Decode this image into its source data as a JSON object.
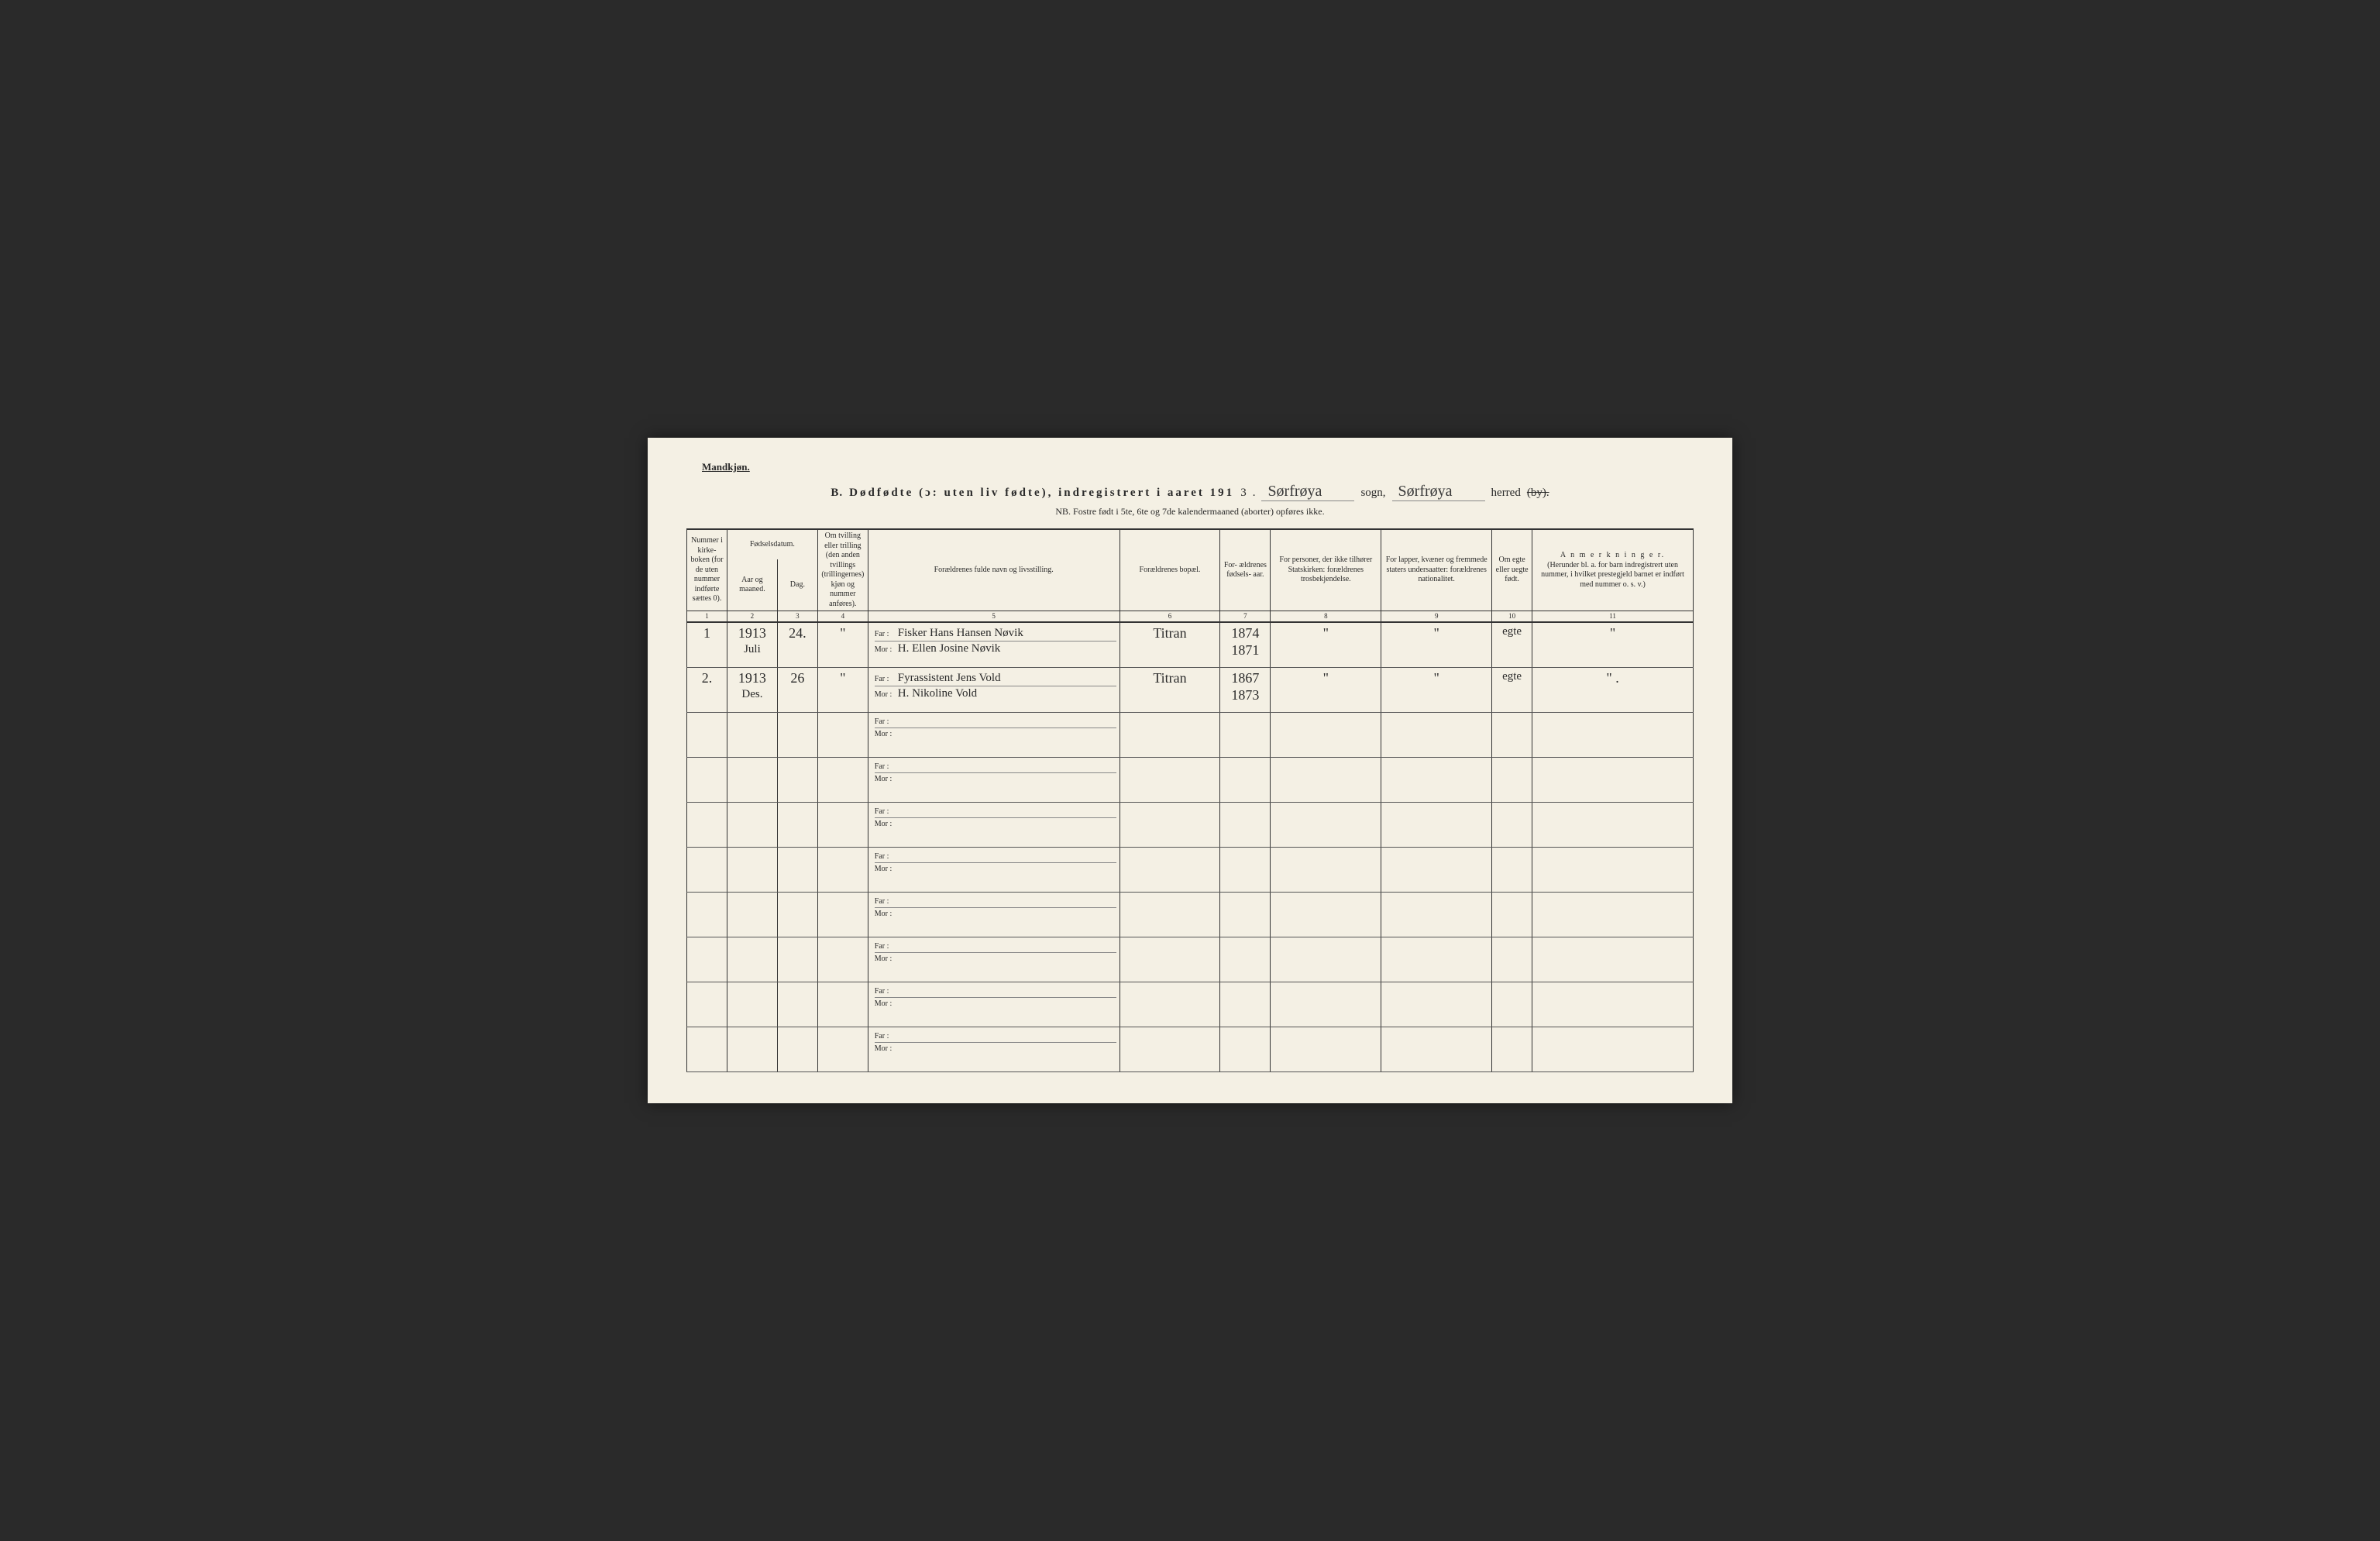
{
  "header": {
    "gender": "Mandkjøn.",
    "section_letter": "B.",
    "title_main": "Dødfødte (ɔ: uten liv fødte), indregistrert i aaret 191",
    "year_suffix": "3",
    "sogn_label": "sogn,",
    "sogn_value": "Sørfrøya",
    "herred_label": "herred",
    "herred_value": "Sørfrøya",
    "by_struck": "(by).",
    "nb": "NB.  Fostre født i 5te, 6te og 7de kalendermaaned (aborter) opføres ikke."
  },
  "columns": {
    "c1": "Nummer i kirke- boken (for de uten nummer indførte sættes 0).",
    "c2_top": "Fødselsdatum.",
    "c2a": "Aar og maaned.",
    "c2b": "Dag.",
    "c4": "Om tvilling eller trilling (den anden tvillings (trillingernes) kjøn og nummer anføres).",
    "c5": "Forældrenes fulde navn og livsstilling.",
    "c6": "Forældrenes bopæl.",
    "c7": "For- ældrenes fødsels- aar.",
    "c8": "For personer, der ikke tilhører Statskirken: forældrenes trosbekjendelse.",
    "c9": "For lapper, kvæner og fremmede staters undersaatter: forældrenes nationalitet.",
    "c10": "Om egte eller uegte født.",
    "c11_title": "A n m e r k n i n g e r.",
    "c11_sub": "(Herunder bl. a. for barn indregistrert uten nummer, i hvilket prestegjeld barnet er indført med nummer o. s. v.)",
    "nums": [
      "1",
      "2",
      "3",
      "4",
      "5",
      "6",
      "7",
      "8",
      "9",
      "10",
      "11"
    ]
  },
  "labels": {
    "far": "Far :",
    "mor": "Mor :"
  },
  "rows": [
    {
      "num": "1",
      "year_month": "1913 Juli",
      "day": "24.",
      "twin": "\"",
      "far": "Fisker Hans Hansen Nøvik",
      "mor": "H. Ellen Josine Nøvik",
      "home": "Titran",
      "pyears_top": "1874",
      "pyears_bot": "1871",
      "rel": "\"",
      "nat": "\"",
      "leg": "egte",
      "rem": "\""
    },
    {
      "num": "2.",
      "year_month": "1913 Des.",
      "day": "26",
      "twin": "\"",
      "far": "Fyrassistent Jens Vold",
      "mor": "H. Nikoline Vold",
      "home": "Titran",
      "pyears_top": "1867",
      "pyears_bot": "1873",
      "rel": "\"",
      "nat": "\"",
      "leg": "egte",
      "rem": "\" ."
    },
    {
      "num": "",
      "year_month": "",
      "day": "",
      "twin": "",
      "far": "",
      "mor": "",
      "home": "",
      "pyears_top": "",
      "pyears_bot": "",
      "rel": "",
      "nat": "",
      "leg": "",
      "rem": ""
    },
    {
      "num": "",
      "year_month": "",
      "day": "",
      "twin": "",
      "far": "",
      "mor": "",
      "home": "",
      "pyears_top": "",
      "pyears_bot": "",
      "rel": "",
      "nat": "",
      "leg": "",
      "rem": ""
    },
    {
      "num": "",
      "year_month": "",
      "day": "",
      "twin": "",
      "far": "",
      "mor": "",
      "home": "",
      "pyears_top": "",
      "pyears_bot": "",
      "rel": "",
      "nat": "",
      "leg": "",
      "rem": ""
    },
    {
      "num": "",
      "year_month": "",
      "day": "",
      "twin": "",
      "far": "",
      "mor": "",
      "home": "",
      "pyears_top": "",
      "pyears_bot": "",
      "rel": "",
      "nat": "",
      "leg": "",
      "rem": ""
    },
    {
      "num": "",
      "year_month": "",
      "day": "",
      "twin": "",
      "far": "",
      "mor": "",
      "home": "",
      "pyears_top": "",
      "pyears_bot": "",
      "rel": "",
      "nat": "",
      "leg": "",
      "rem": ""
    },
    {
      "num": "",
      "year_month": "",
      "day": "",
      "twin": "",
      "far": "",
      "mor": "",
      "home": "",
      "pyears_top": "",
      "pyears_bot": "",
      "rel": "",
      "nat": "",
      "leg": "",
      "rem": ""
    },
    {
      "num": "",
      "year_month": "",
      "day": "",
      "twin": "",
      "far": "",
      "mor": "",
      "home": "",
      "pyears_top": "",
      "pyears_bot": "",
      "rel": "",
      "nat": "",
      "leg": "",
      "rem": ""
    },
    {
      "num": "",
      "year_month": "",
      "day": "",
      "twin": "",
      "far": "",
      "mor": "",
      "home": "",
      "pyears_top": "",
      "pyears_bot": "",
      "rel": "",
      "nat": "",
      "leg": "",
      "rem": ""
    }
  ],
  "style": {
    "page_bg": "#f4f0e4",
    "ink": "#2a2a2a",
    "rule": "#333333"
  }
}
